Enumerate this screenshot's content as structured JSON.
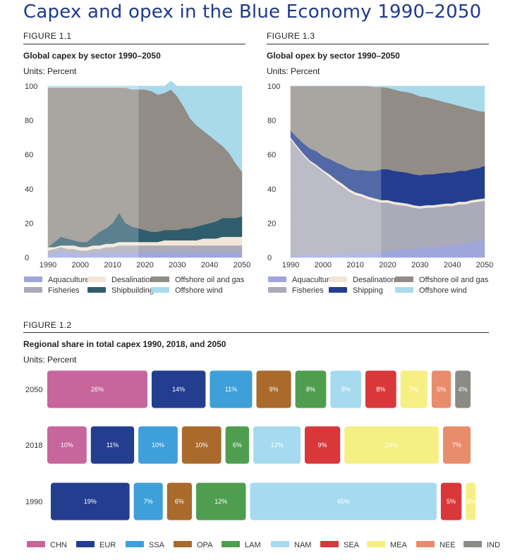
{
  "page": {
    "title": "Capex and opex in the Blue Economy 1990–2050"
  },
  "fig1": {
    "label": "FIGURE 1.1",
    "title": "Global capex by sector 1990–2050",
    "units": "Units: Percent"
  },
  "fig3": {
    "label": "FIGURE 1.3",
    "title": "Global opex by sector 1990–2050",
    "units": "Units: Percent"
  },
  "fig2": {
    "label": "FIGURE 1.2",
    "title": "Regional share in total capex 1990, 2018, and 2050",
    "units": "Units: Percent"
  },
  "colors": {
    "Aquaculture": "#9ea6dc",
    "Fisheries": "#aaaab8",
    "Desalination": "#f1e6d6",
    "Shipbuilding": "#2f5d6e",
    "Shipping": "#233e8f",
    "Offshore oil and gas": "#918c86",
    "Offshore wind": "#a9daec",
    "CHN": "#c6669c",
    "EUR": "#233e8f",
    "SSA": "#3f9fd9",
    "OPA": "#a96a2c",
    "LAM": "#4f9e4f",
    "NAM": "#a6daef",
    "SEA": "#d9373a",
    "MEA": "#f6ef84",
    "NEE": "#e88c6c",
    "IND": "#8c8a86"
  },
  "chart_data": [
    {
      "type": "area",
      "title": "Global capex by sector 1990–2050",
      "ylabel": "Units: Percent",
      "x": [
        1990,
        1992,
        1994,
        1996,
        1998,
        2000,
        2002,
        2004,
        2006,
        2008,
        2010,
        2012,
        2014,
        2016,
        2018,
        2020,
        2022,
        2024,
        2026,
        2028,
        2030,
        2032,
        2034,
        2036,
        2038,
        2040,
        2042,
        2044,
        2046,
        2048,
        2050
      ],
      "xticks": [
        1990,
        2000,
        2010,
        2020,
        2030,
        2040,
        2050
      ],
      "ylim": [
        0,
        100
      ],
      "yticks": [
        0,
        20,
        40,
        60,
        80,
        100
      ],
      "stacked": true,
      "series": [
        {
          "name": "Aquaculture",
          "values": [
            2,
            3,
            4,
            3,
            3,
            2,
            2,
            3,
            3,
            3,
            3,
            3,
            3,
            3,
            3,
            3,
            3,
            3,
            3,
            3,
            3,
            3,
            3,
            3,
            3,
            3,
            3,
            3,
            3,
            3,
            3
          ]
        },
        {
          "name": "Fisheries",
          "values": [
            2,
            2,
            2,
            2,
            2,
            2,
            2,
            2,
            2,
            3,
            3,
            4,
            4,
            4,
            4,
            4,
            4,
            4,
            4,
            4,
            4,
            4,
            4,
            4,
            4,
            4,
            4,
            4,
            4,
            4,
            4
          ]
        },
        {
          "name": "Desalination",
          "values": [
            2,
            1,
            1,
            2,
            2,
            2,
            2,
            2,
            2,
            2,
            2,
            2,
            2,
            2,
            2,
            2,
            2,
            2,
            3,
            3,
            3,
            3,
            3,
            3,
            4,
            4,
            4,
            5,
            5,
            5,
            5
          ]
        },
        {
          "name": "Shipbuilding",
          "values": [
            0,
            3,
            5,
            4,
            3,
            3,
            3,
            5,
            8,
            9,
            12,
            17,
            11,
            9,
            8,
            7,
            6,
            6,
            6,
            6,
            6,
            7,
            7,
            8,
            8,
            9,
            10,
            11,
            11,
            11,
            12
          ]
        },
        {
          "name": "Offshore oil and gas",
          "values": [
            93,
            90,
            87,
            88,
            89,
            90,
            90,
            87,
            84,
            82,
            79,
            73,
            79,
            80,
            81,
            82,
            82,
            80,
            80,
            82,
            78,
            71,
            64,
            59,
            55,
            51,
            47,
            42,
            38,
            32,
            26
          ]
        },
        {
          "name": "Offshore wind",
          "values": [
            1,
            1,
            1,
            1,
            1,
            1,
            1,
            1,
            1,
            1,
            1,
            1,
            1,
            2,
            2,
            2,
            3,
            5,
            4,
            5,
            6,
            12,
            19,
            23,
            26,
            29,
            32,
            35,
            39,
            45,
            50
          ]
        }
      ]
    },
    {
      "type": "area",
      "title": "Global opex by sector 1990–2050",
      "ylabel": "Units: Percent",
      "x": [
        1990,
        1992,
        1994,
        1996,
        1998,
        2000,
        2002,
        2004,
        2006,
        2008,
        2010,
        2012,
        2014,
        2016,
        2018,
        2020,
        2022,
        2024,
        2026,
        2028,
        2030,
        2032,
        2034,
        2036,
        2038,
        2040,
        2042,
        2044,
        2046,
        2048,
        2050
      ],
      "xticks": [
        1990,
        2000,
        2010,
        2020,
        2030,
        2040,
        2050
      ],
      "ylim": [
        0,
        100
      ],
      "yticks": [
        0,
        20,
        40,
        60,
        80,
        100
      ],
      "stacked": true,
      "series": [
        {
          "name": "Aquaculture",
          "values": [
            1,
            1,
            1.5,
            1.5,
            2,
            2,
            2,
            2,
            2.5,
            2.5,
            2.5,
            2.5,
            3,
            3,
            3,
            4,
            4,
            4.5,
            5,
            5,
            5.5,
            6,
            6,
            6.5,
            7,
            7,
            8,
            8,
            9,
            9.5,
            10
          ]
        },
        {
          "name": "Fisheries",
          "values": [
            68,
            63,
            58,
            54,
            51,
            48,
            45,
            42,
            39,
            36,
            34,
            33,
            31,
            30,
            29,
            28,
            27,
            26,
            25,
            24,
            23,
            23,
            23,
            23,
            23,
            23,
            23,
            23,
            23,
            23,
            23
          ]
        },
        {
          "name": "Desalination",
          "values": [
            1,
            1,
            1,
            1,
            1,
            1,
            1.5,
            1.5,
            1.5,
            1.5,
            1.5,
            1.5,
            1.5,
            1.5,
            1.5,
            1.5,
            1.5,
            1.5,
            1.5,
            1.5,
            1.5,
            1.5,
            1.5,
            1.5,
            1.5,
            1.5,
            1.5,
            1.5,
            1.5,
            1.5,
            1.5
          ]
        },
        {
          "name": "Shipping",
          "values": [
            4,
            5,
            6,
            7,
            8,
            8,
            9,
            10,
            11,
            12,
            13,
            14,
            15,
            16,
            18,
            18,
            18,
            18,
            18,
            18,
            18,
            18,
            18,
            18,
            18,
            18,
            18,
            18,
            18,
            18,
            19
          ]
        },
        {
          "name": "Offshore oil and gas",
          "values": [
            26,
            30,
            33.5,
            36.5,
            38,
            41,
            42.5,
            44.5,
            46,
            48,
            49,
            49,
            49.5,
            49,
            48,
            47.5,
            47.5,
            47,
            47,
            47,
            46,
            45,
            44,
            42.5,
            41,
            40,
            38,
            37,
            35,
            33.5,
            31.5
          ]
        },
        {
          "name": "Offshore wind",
          "values": [
            0,
            0,
            0,
            0,
            0,
            0,
            0,
            0,
            0,
            0,
            0,
            0,
            0,
            0.5,
            0.5,
            1,
            2,
            3,
            3.5,
            4.5,
            6,
            6.5,
            7.5,
            8.5,
            9.5,
            10.5,
            11.5,
            12.5,
            13.5,
            14.5,
            15
          ]
        }
      ]
    },
    {
      "type": "bar",
      "title": "Regional share in total capex 1990, 2018, and 2050",
      "ylabel": "Units: Percent",
      "legend": [
        "CHN",
        "EUR",
        "SSA",
        "OPA",
        "LAM",
        "NAM",
        "SEA",
        "MEA",
        "NEE",
        "IND"
      ],
      "rows": [
        {
          "year": "2050",
          "items": [
            {
              "region": "CHN",
              "value": 26,
              "label": "26%"
            },
            {
              "region": "EUR",
              "value": 14,
              "label": "14%"
            },
            {
              "region": "SSA",
              "value": 11,
              "label": "11%"
            },
            {
              "region": "OPA",
              "value": 9,
              "label": "9%"
            },
            {
              "region": "LAM",
              "value": 8,
              "label": "8%"
            },
            {
              "region": "NAM",
              "value": 8,
              "label": "8%"
            },
            {
              "region": "SEA",
              "value": 8,
              "label": "8%"
            },
            {
              "region": "MEA",
              "value": 7,
              "label": "7%"
            },
            {
              "region": "NEE",
              "value": 5,
              "label": "5%"
            },
            {
              "region": "IND",
              "value": 4,
              "label": "4%"
            }
          ]
        },
        {
          "year": "2018",
          "items": [
            {
              "region": "CHN",
              "value": 10,
              "label": "10%"
            },
            {
              "region": "EUR",
              "value": 11,
              "label": "11%"
            },
            {
              "region": "SSA",
              "value": 10,
              "label": "10%"
            },
            {
              "region": "OPA",
              "value": 10,
              "label": "10%"
            },
            {
              "region": "LAM",
              "value": 6,
              "label": "6%"
            },
            {
              "region": "NAM",
              "value": 12,
              "label": "12%"
            },
            {
              "region": "SEA",
              "value": 9,
              "label": "9%"
            },
            {
              "region": "MEA",
              "value": 24,
              "label": "24%"
            },
            {
              "region": "NEE",
              "value": 7,
              "label": "7%"
            }
          ]
        },
        {
          "year": "1990",
          "items": [
            {
              "region": "EUR",
              "value": 19,
              "label": "19%"
            },
            {
              "region": "SSA",
              "value": 7,
              "label": "7%"
            },
            {
              "region": "OPA",
              "value": 6,
              "label": "6%"
            },
            {
              "region": "LAM",
              "value": 12,
              "label": "12%"
            },
            {
              "region": "NAM",
              "value": 45,
              "label": "45%"
            },
            {
              "region": "SEA",
              "value": 5,
              "label": "5%"
            },
            {
              "region": "MEA",
              "value": 2,
              "label": "2%"
            }
          ]
        }
      ]
    }
  ],
  "legend1": [
    "Aquaculture",
    "Desalination",
    "Offshore oil and gas",
    "Fisheries",
    "Shipbuilding",
    "Offshore wind"
  ],
  "legend3": [
    "Aquaculture",
    "Desalination",
    "Offshore oil and gas",
    "Fisheries",
    "Shipping",
    "Offshore wind"
  ]
}
